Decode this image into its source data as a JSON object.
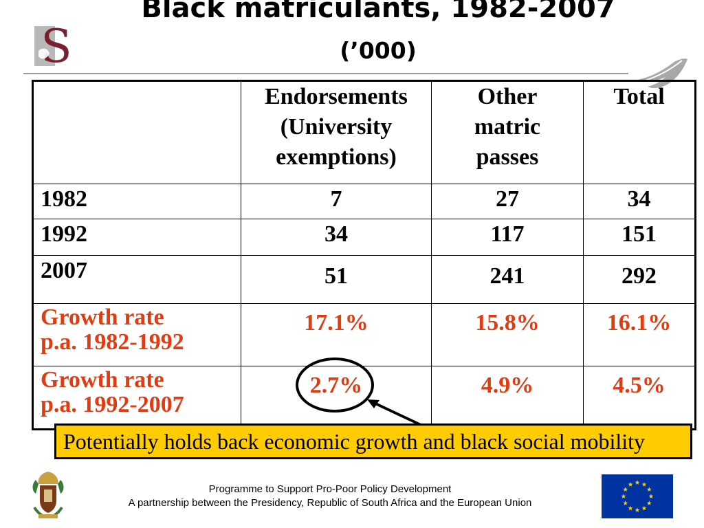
{
  "title": "Black matriculants, 1982-2007",
  "subtitle": "(’000)",
  "table": {
    "headers": [
      "",
      "Endorsements (University exemptions)",
      "Other matric passes",
      "Total"
    ],
    "header_lines": {
      "endorsements": [
        "Endorsements",
        "(University",
        "exemptions)"
      ],
      "other": [
        "Other",
        "matric",
        "passes"
      ],
      "total": [
        "Total"
      ]
    },
    "rows": [
      {
        "label": "1982",
        "endorsements": "7",
        "other": "27",
        "total": "34"
      },
      {
        "label": "1992",
        "endorsements": "34",
        "other": "117",
        "total": "151"
      },
      {
        "label": "2007",
        "endorsements": "51",
        "other": "241",
        "total": "292"
      }
    ],
    "growth_rows": [
      {
        "label_lines": [
          "Growth rate",
          "p.a. 1982-1992"
        ],
        "endorsements": "17.1%",
        "other": "15.8%",
        "total": "16.1%"
      },
      {
        "label_lines": [
          "Growth rate",
          "p.a. 1992-2007"
        ],
        "endorsements": "2.7%",
        "other": "4.9%",
        "total": "4.5%"
      }
    ]
  },
  "callout": "Potentially holds back economic growth and black social mobility",
  "footer": {
    "line1": "Programme to Support Pro-Poor Policy Development",
    "line2": "A partnership between the Presidency, Republic of South Africa and the European Union"
  },
  "colors": {
    "growth_text": "#e23b11",
    "callout_bg": "#ffcc00",
    "eu_blue": "#0033a0",
    "eu_stars": "#ffcc00",
    "logo_maroon": "#7b1f2e"
  },
  "icons": [
    "stellenbosch-logo-icon",
    "feather-icon",
    "coat-of-arms-icon",
    "eu-flag-icon"
  ]
}
